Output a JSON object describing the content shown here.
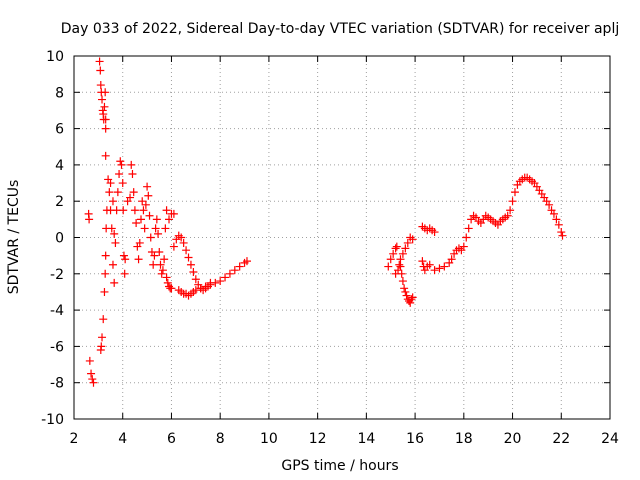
{
  "chart_data": {
    "type": "scatter",
    "title": "Day 033 of 2022, Sidereal Day-to-day VTEC variation (SDTVAR) for receiver aplj",
    "xlabel": "GPS time / hours",
    "ylabel": "SDTVAR / TECUs",
    "xlim": [
      2,
      24
    ],
    "ylim": [
      -10,
      10
    ],
    "xticks": [
      2,
      4,
      6,
      8,
      10,
      12,
      14,
      16,
      18,
      20,
      22,
      24
    ],
    "yticks": [
      -10,
      -8,
      -6,
      -4,
      -2,
      0,
      2,
      4,
      6,
      8,
      10
    ],
    "grid": true,
    "marker": "+",
    "color": "#ff0000",
    "series": [
      {
        "name": "aplj",
        "points": [
          [
            2.6,
            1.3
          ],
          [
            2.62,
            1.0
          ],
          [
            2.65,
            -6.8
          ],
          [
            2.7,
            -7.5
          ],
          [
            2.75,
            -7.8
          ],
          [
            2.8,
            -8.0
          ],
          [
            3.05,
            9.7
          ],
          [
            3.08,
            9.2
          ],
          [
            3.1,
            8.4
          ],
          [
            3.12,
            8.0
          ],
          [
            3.15,
            7.6
          ],
          [
            3.18,
            7.0
          ],
          [
            3.2,
            6.8
          ],
          [
            3.22,
            6.5
          ],
          [
            3.25,
            7.2
          ],
          [
            3.28,
            8.0
          ],
          [
            3.3,
            6.5
          ],
          [
            3.1,
            -6.2
          ],
          [
            3.12,
            -6.0
          ],
          [
            3.15,
            -5.5
          ],
          [
            3.2,
            -4.5
          ],
          [
            3.25,
            -3.0
          ],
          [
            3.28,
            -2.0
          ],
          [
            3.3,
            -1.0
          ],
          [
            3.32,
            0.5
          ],
          [
            3.35,
            1.5
          ],
          [
            3.3,
            4.5
          ],
          [
            3.3,
            6.0
          ],
          [
            3.4,
            3.2
          ],
          [
            3.45,
            2.5
          ],
          [
            3.5,
            1.5
          ],
          [
            3.55,
            0.5
          ],
          [
            3.6,
            -1.5
          ],
          [
            3.65,
            -2.5
          ],
          [
            3.5,
            3.0
          ],
          [
            3.6,
            2.0
          ],
          [
            3.65,
            0.2
          ],
          [
            3.7,
            -0.3
          ],
          [
            3.75,
            1.5
          ],
          [
            3.8,
            2.5
          ],
          [
            3.85,
            3.5
          ],
          [
            3.9,
            4.2
          ],
          [
            3.95,
            4.0
          ],
          [
            4.0,
            3.0
          ],
          [
            4.02,
            1.5
          ],
          [
            4.05,
            -1.0
          ],
          [
            4.08,
            -2.0
          ],
          [
            4.1,
            -1.2
          ],
          [
            4.2,
            2.0
          ],
          [
            4.3,
            2.2
          ],
          [
            4.35,
            4.0
          ],
          [
            4.4,
            3.5
          ],
          [
            4.45,
            2.5
          ],
          [
            4.5,
            1.5
          ],
          [
            4.55,
            0.8
          ],
          [
            4.6,
            -0.5
          ],
          [
            4.65,
            -1.2
          ],
          [
            4.7,
            -0.3
          ],
          [
            4.75,
            1.0
          ],
          [
            4.8,
            2.0
          ],
          [
            4.85,
            1.5
          ],
          [
            4.9,
            0.5
          ],
          [
            4.95,
            1.8
          ],
          [
            5.0,
            2.8
          ],
          [
            5.05,
            2.3
          ],
          [
            5.1,
            1.2
          ],
          [
            5.15,
            0.0
          ],
          [
            5.2,
            -0.8
          ],
          [
            5.25,
            -1.5
          ],
          [
            5.3,
            -1.0
          ],
          [
            5.35,
            0.5
          ],
          [
            5.4,
            1.0
          ],
          [
            5.45,
            0.2
          ],
          [
            5.5,
            -0.8
          ],
          [
            5.55,
            -1.5
          ],
          [
            5.6,
            -2.0
          ],
          [
            5.65,
            -1.8
          ],
          [
            5.7,
            -1.2
          ],
          [
            5.75,
            0.5
          ],
          [
            5.8,
            1.5
          ],
          [
            5.9,
            1.0
          ],
          [
            6.0,
            1.3
          ],
          [
            6.1,
            1.3
          ],
          [
            5.8,
            -2.2
          ],
          [
            5.85,
            -2.5
          ],
          [
            5.9,
            -2.7
          ],
          [
            5.95,
            -2.8
          ],
          [
            6.0,
            -2.8
          ],
          [
            6.1,
            -0.5
          ],
          [
            6.2,
            -0.1
          ],
          [
            6.3,
            0.1
          ],
          [
            6.4,
            0.0
          ],
          [
            6.5,
            -0.3
          ],
          [
            6.6,
            -0.7
          ],
          [
            6.7,
            -1.1
          ],
          [
            6.8,
            -1.5
          ],
          [
            6.9,
            -1.9
          ],
          [
            7.0,
            -2.3
          ],
          [
            7.1,
            -2.6
          ],
          [
            7.2,
            -2.8
          ],
          [
            7.3,
            -2.9
          ],
          [
            7.4,
            -2.8
          ],
          [
            7.5,
            -2.7
          ],
          [
            7.6,
            -2.5
          ],
          [
            6.3,
            -2.9
          ],
          [
            6.4,
            -3.0
          ],
          [
            6.5,
            -3.1
          ],
          [
            6.6,
            -3.1
          ],
          [
            6.7,
            -3.2
          ],
          [
            6.8,
            -3.1
          ],
          [
            6.9,
            -3.0
          ],
          [
            7.0,
            -2.9
          ],
          [
            7.2,
            -2.8
          ],
          [
            7.4,
            -2.7
          ],
          [
            7.6,
            -2.6
          ],
          [
            7.8,
            -2.5
          ],
          [
            8.0,
            -2.4
          ],
          [
            8.2,
            -2.2
          ],
          [
            8.4,
            -2.0
          ],
          [
            8.6,
            -1.8
          ],
          [
            8.8,
            -1.6
          ],
          [
            9.0,
            -1.4
          ],
          [
            9.1,
            -1.3
          ],
          [
            14.9,
            -1.6
          ],
          [
            15.0,
            -1.2
          ],
          [
            15.1,
            -0.9
          ],
          [
            15.2,
            -0.6
          ],
          [
            15.25,
            -0.5
          ],
          [
            15.2,
            -2.0
          ],
          [
            15.3,
            -1.8
          ],
          [
            15.35,
            -1.5
          ],
          [
            15.4,
            -1.2
          ],
          [
            15.5,
            -0.9
          ],
          [
            15.6,
            -0.6
          ],
          [
            15.7,
            -0.3
          ],
          [
            15.8,
            0.0
          ],
          [
            15.9,
            -0.1
          ],
          [
            15.4,
            -1.6
          ],
          [
            15.45,
            -2.0
          ],
          [
            15.5,
            -2.4
          ],
          [
            15.55,
            -2.8
          ],
          [
            15.6,
            -3.0
          ],
          [
            15.65,
            -3.2
          ],
          [
            15.7,
            -3.4
          ],
          [
            15.75,
            -3.5
          ],
          [
            15.8,
            -3.6
          ],
          [
            15.85,
            -3.4
          ],
          [
            15.9,
            -3.3
          ],
          [
            16.3,
            0.6
          ],
          [
            16.4,
            0.5
          ],
          [
            16.5,
            0.4
          ],
          [
            16.6,
            0.5
          ],
          [
            16.7,
            0.4
          ],
          [
            16.8,
            0.3
          ],
          [
            16.3,
            -1.3
          ],
          [
            16.35,
            -1.6
          ],
          [
            16.4,
            -1.8
          ],
          [
            16.5,
            -1.6
          ],
          [
            16.6,
            -1.5
          ],
          [
            16.8,
            -1.8
          ],
          [
            17.0,
            -1.7
          ],
          [
            17.2,
            -1.6
          ],
          [
            17.4,
            -1.4
          ],
          [
            17.5,
            -1.2
          ],
          [
            17.6,
            -0.9
          ],
          [
            17.7,
            -0.7
          ],
          [
            17.8,
            -0.6
          ],
          [
            17.9,
            -0.7
          ],
          [
            18.0,
            -0.5
          ],
          [
            18.1,
            0.0
          ],
          [
            18.2,
            0.5
          ],
          [
            18.3,
            1.0
          ],
          [
            18.4,
            1.2
          ],
          [
            18.5,
            1.1
          ],
          [
            18.6,
            0.9
          ],
          [
            18.7,
            0.8
          ],
          [
            18.8,
            1.0
          ],
          [
            18.9,
            1.2
          ],
          [
            19.0,
            1.1
          ],
          [
            19.1,
            1.0
          ],
          [
            19.2,
            0.9
          ],
          [
            19.3,
            0.8
          ],
          [
            19.4,
            0.7
          ],
          [
            19.5,
            0.9
          ],
          [
            19.6,
            1.0
          ],
          [
            19.7,
            1.1
          ],
          [
            19.8,
            1.2
          ],
          [
            19.9,
            1.5
          ],
          [
            20.0,
            2.0
          ],
          [
            20.1,
            2.5
          ],
          [
            20.2,
            2.9
          ],
          [
            20.3,
            3.1
          ],
          [
            20.4,
            3.2
          ],
          [
            20.5,
            3.3
          ],
          [
            20.6,
            3.3
          ],
          [
            20.7,
            3.2
          ],
          [
            20.8,
            3.1
          ],
          [
            20.9,
            3.0
          ],
          [
            21.0,
            2.8
          ],
          [
            21.1,
            2.6
          ],
          [
            21.2,
            2.4
          ],
          [
            21.3,
            2.2
          ],
          [
            21.4,
            2.0
          ],
          [
            21.5,
            1.8
          ],
          [
            21.6,
            1.5
          ],
          [
            21.7,
            1.3
          ],
          [
            21.8,
            1.0
          ],
          [
            21.9,
            0.7
          ],
          [
            22.0,
            0.3
          ],
          [
            22.05,
            0.1
          ]
        ]
      }
    ]
  }
}
